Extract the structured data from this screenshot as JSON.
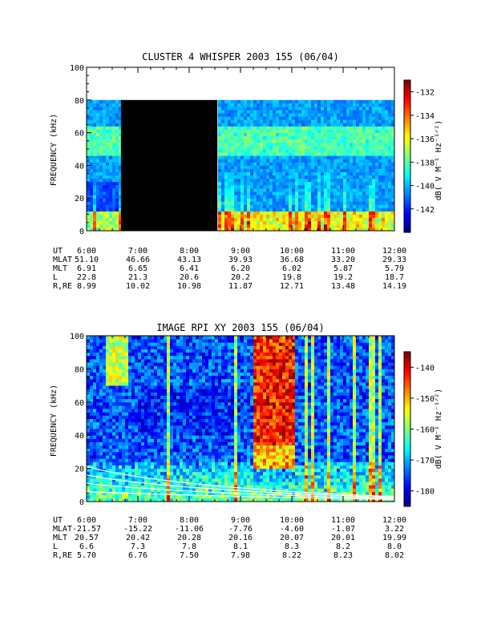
{
  "chart_data": [
    {
      "type": "heatmap",
      "title": "CLUSTER 4 WHISPER 2003 155 (06/04)",
      "ylabel": "FREQUENCY (kHz)",
      "ylim": [
        0,
        100
      ],
      "yticks": [
        "0",
        "20",
        "40",
        "60",
        "80",
        "100"
      ],
      "x_range_hours": [
        6,
        12
      ],
      "colorbar": {
        "label": "dB( V M⁻¹ Hz⁻¹ᐟ²)",
        "range": [
          -144,
          -131
        ],
        "ticks": [
          "-132",
          "-134",
          "-136",
          "-138",
          "-140",
          "-142"
        ]
      },
      "data_freq_max_khz": 80,
      "data_gap_hours": [
        6.67,
        8.55
      ],
      "spectrogram_description_levels_db": {
        "background": -140,
        "low_freq_band_0_10khz": -136,
        "bursts_up_to_khz": 40,
        "band_45_65khz": -137
      },
      "ephemeris": {
        "labels": [
          "UT",
          "MLAT",
          "MLT",
          "L",
          "R,RE"
        ],
        "ut": [
          "6:00",
          "7:00",
          "8:00",
          "9:00",
          "10:00",
          "11:00",
          "12:00"
        ],
        "mlat": [
          "51.10",
          "46.66",
          "43.13",
          "39.93",
          "36.68",
          "33.20",
          "29.33"
        ],
        "mlt": [
          "6.91",
          "6.65",
          "6.41",
          "6.20",
          "6.02",
          "5.87",
          "5.79"
        ],
        "l": [
          "22.8",
          "21.3",
          "20.6",
          "20.2",
          "19.8",
          "19.2",
          "18.7"
        ],
        "r": [
          "8.99",
          "10.02",
          "10.98",
          "11.87",
          "12.71",
          "13.48",
          "14.19"
        ]
      }
    },
    {
      "type": "heatmap",
      "title": "IMAGE RPI XY 2003 155 (06/04)",
      "ylabel": "FREQUENCY (kHz)",
      "ylim": [
        0,
        100
      ],
      "yticks": [
        "0",
        "20",
        "40",
        "60",
        "80",
        "100"
      ],
      "x_range_hours": [
        6,
        12
      ],
      "colorbar": {
        "label": "dB( V M⁻¹ Hz⁻¹ᐟ²)",
        "range": [
          -185,
          -135
        ],
        "ticks": [
          "-140",
          "-150",
          "-160",
          "-170",
          "-180"
        ]
      },
      "bright_emission_hours": [
        9.25,
        10.05
      ],
      "white_curves_count": 4,
      "ephemeris": {
        "labels": [
          "UT",
          "MLAT",
          "MLT",
          "L",
          "R,RE"
        ],
        "ut": [
          "6:00",
          "7:00",
          "8:00",
          "9:00",
          "10:00",
          "11:00",
          "12:00"
        ],
        "mlat": [
          "-21.57",
          "-15.22",
          "-11.06",
          "-7.76",
          "-4.60",
          "-1.07",
          "3.22"
        ],
        "mlt": [
          "20.57",
          "20.42",
          "20.28",
          "20.16",
          "20.07",
          "20.01",
          "19.99"
        ],
        "l": [
          "6.6",
          "7.3",
          "7.8",
          "8.1",
          "8.3",
          "8.2",
          "8.0"
        ],
        "r": [
          "5.70",
          "6.76",
          "7.50",
          "7.98",
          "8.22",
          "8.23",
          "8.02"
        ]
      }
    }
  ]
}
